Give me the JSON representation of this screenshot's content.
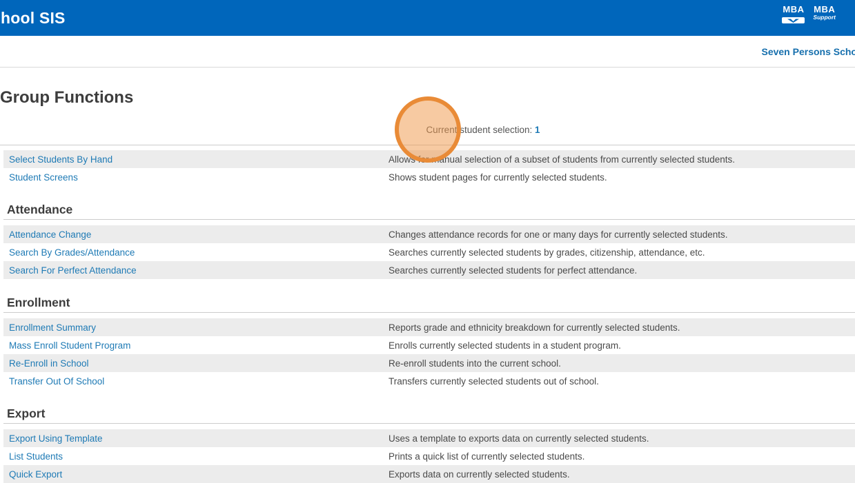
{
  "header": {
    "app_title": "hool SIS",
    "logos": {
      "mba": "MBA",
      "mba_support_top": "MBA",
      "mba_support_sub": "Support"
    }
  },
  "subheader": {
    "school_name": "Seven Persons Scho"
  },
  "page": {
    "title": "Group Functions",
    "selection_label": "Current student selection:",
    "selection_count": "1"
  },
  "sections": [
    {
      "title": "",
      "rows": [
        {
          "label": "Select Students By Hand",
          "description": "Allows for manual selection of a subset of students from currently selected students."
        },
        {
          "label": "Student Screens",
          "description": "Shows student pages for currently selected students."
        }
      ]
    },
    {
      "title": "Attendance",
      "rows": [
        {
          "label": "Attendance Change",
          "description": "Changes attendance records for one or many days for currently selected students."
        },
        {
          "label": "Search By Grades/Attendance",
          "description": "Searches currently selected students by grades, citizenship, attendance, etc."
        },
        {
          "label": "Search For Perfect Attendance",
          "description": "Searches currently selected students for perfect attendance."
        }
      ]
    },
    {
      "title": "Enrollment",
      "rows": [
        {
          "label": "Enrollment Summary",
          "description": "Reports grade and ethnicity breakdown for currently selected students."
        },
        {
          "label": "Mass Enroll Student Program",
          "description": "Enrolls currently selected students in a student program."
        },
        {
          "label": "Re-Enroll in School",
          "description": "Re-enroll students into the current school."
        },
        {
          "label": "Transfer Out Of School",
          "description": "Transfers currently selected students out of school."
        }
      ]
    },
    {
      "title": "Export",
      "rows": [
        {
          "label": "Export Using Template",
          "description": "Uses a template to exports data on currently selected students."
        },
        {
          "label": "List Students",
          "description": "Prints a quick list of currently selected students."
        },
        {
          "label": "Quick Export",
          "description": "Exports data on currently selected students."
        }
      ]
    }
  ],
  "annotations": {
    "click_highlight": "circle over current student selection"
  },
  "colors": {
    "header_bg": "#0066bb",
    "link_blue": "#1e7ab5",
    "school_link": "#166fad",
    "heading_text": "#3d3d3d",
    "body_text": "#4a4a4a",
    "row_alt_bg": "#ececec",
    "divider": "#cccccc",
    "highlight_border": "#e98b37",
    "highlight_fill": "rgba(240,150,70,0.5)"
  }
}
